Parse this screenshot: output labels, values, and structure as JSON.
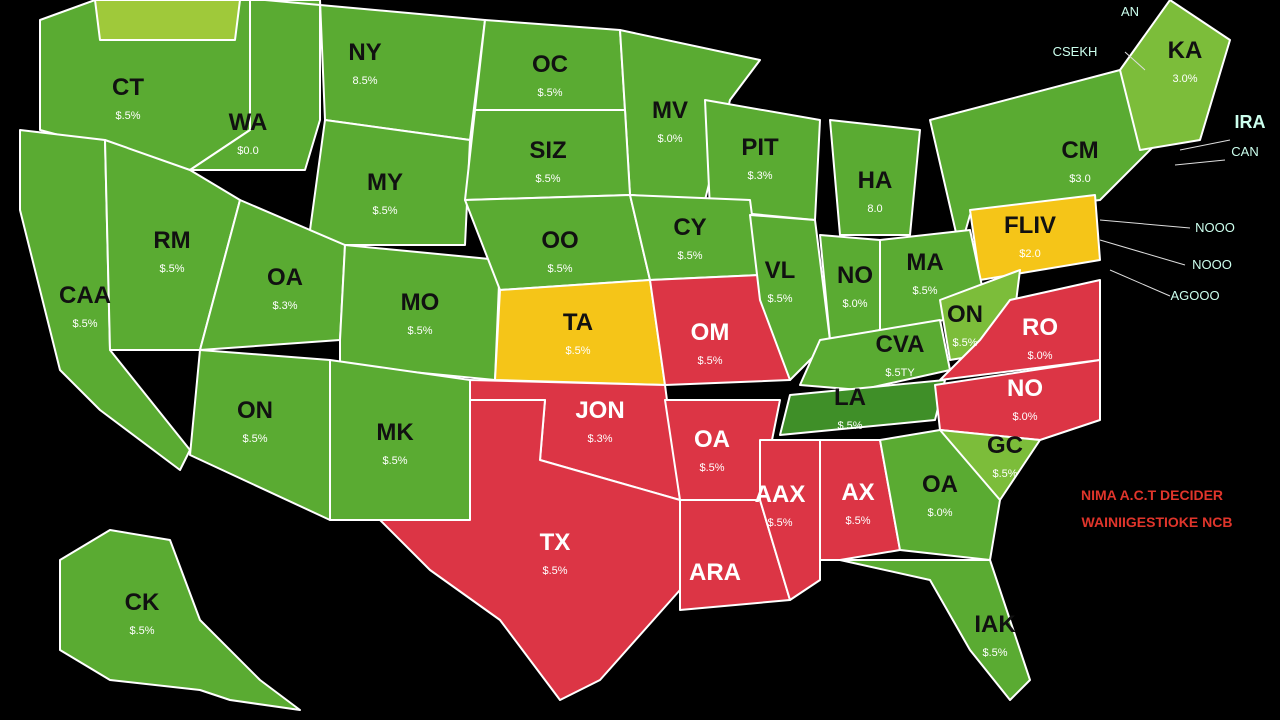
{
  "map": {
    "regions": [
      {
        "label": "CT",
        "sub": "$.5%"
      },
      {
        "label": "WA",
        "sub": "$0.0"
      },
      {
        "label": "NY",
        "sub": "8.5%"
      },
      {
        "label": "OC",
        "sub": "$.5%"
      },
      {
        "label": "MV",
        "sub": "$.0%"
      },
      {
        "label": "PIT",
        "sub": "$.3%"
      },
      {
        "label": "HA",
        "sub": "8.0"
      },
      {
        "label": "CM",
        "sub": "$3.0"
      },
      {
        "label": "KA",
        "sub": "3.0%"
      },
      {
        "label": "FLIV",
        "sub": "$2.0"
      },
      {
        "label": "CAA",
        "sub": "$.5%"
      },
      {
        "label": "RM",
        "sub": "$.5%"
      },
      {
        "label": "OA",
        "sub": "$.3%"
      },
      {
        "label": "MY",
        "sub": "$.5%"
      },
      {
        "label": "MO",
        "sub": "$.5%"
      },
      {
        "label": "SIZ",
        "sub": "$.5%"
      },
      {
        "label": "OO",
        "sub": "$.5%"
      },
      {
        "label": "CY",
        "sub": "$.5%"
      },
      {
        "label": "TA",
        "sub": "$.5%"
      },
      {
        "label": "OM",
        "sub": "$.5%"
      },
      {
        "label": "VL",
        "sub": "$.5%"
      },
      {
        "label": "NO",
        "sub": "$.0%"
      },
      {
        "label": "MA",
        "sub": "$.5%"
      },
      {
        "label": "ON",
        "sub": "$.5%"
      },
      {
        "label": "RO",
        "sub": "$.0%"
      },
      {
        "label": "CVA",
        "sub": "$.5TY"
      },
      {
        "label": "LA",
        "sub": "$.5%"
      },
      {
        "label": "NO",
        "sub": "$.0%"
      },
      {
        "label": "GC",
        "sub": "$.5%"
      },
      {
        "label": "ON",
        "sub": "$.5%"
      },
      {
        "label": "MK",
        "sub": "$.5%"
      },
      {
        "label": "JON",
        "sub": "$.3%"
      },
      {
        "label": "TX",
        "sub": "$.5%"
      },
      {
        "label": "OA",
        "sub": "$.5%"
      },
      {
        "label": "ARA",
        "sub": ""
      },
      {
        "label": "AAX",
        "sub": "$.5%"
      },
      {
        "label": "AX",
        "sub": "$.5%"
      },
      {
        "label": "OA",
        "sub": "$.0%"
      },
      {
        "label": "IAK",
        "sub": "$.5%"
      },
      {
        "label": "CK",
        "sub": "$.5%"
      }
    ],
    "callouts": [
      "AN",
      "CSEKH",
      "IRA",
      "CAN",
      "NOOO",
      "NOOO",
      "AGOOO"
    ],
    "notes": [
      "NIMA A.C.T DECIDER",
      "WAINIIGESTIOKE NCB"
    ]
  }
}
